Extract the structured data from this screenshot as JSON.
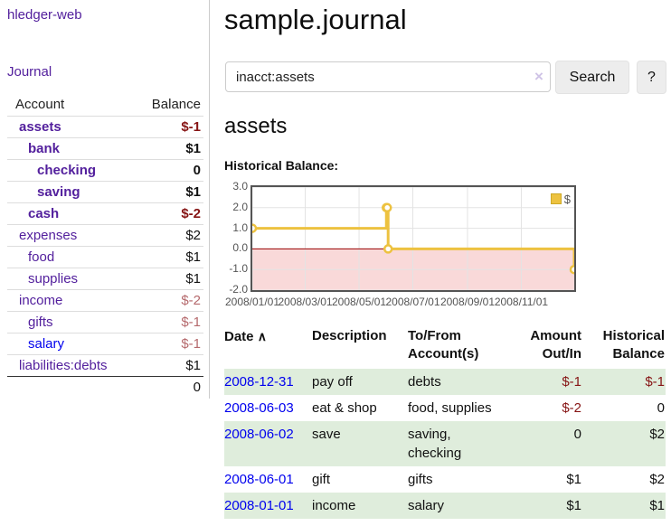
{
  "colors": {
    "link_purple": "#53209d",
    "link_blue": "#0000ee",
    "negative_strong": "#861414",
    "negative_soft": "#b5696c",
    "row_highlight_green": "#dfeddc",
    "chart_gold": "#EDC240"
  },
  "sidebar": {
    "brand": "hledger-web",
    "nav": {
      "journal": "Journal"
    },
    "table_headers": {
      "account": "Account",
      "balance": "Balance"
    },
    "accounts": [
      {
        "name": "assets",
        "balance": "$-1"
      },
      {
        "name": "bank",
        "balance": "$1"
      },
      {
        "name": "checking",
        "balance": "0"
      },
      {
        "name": "saving",
        "balance": "$1"
      },
      {
        "name": "cash",
        "balance": "$-2"
      },
      {
        "name": "expenses",
        "balance": "$2"
      },
      {
        "name": "food",
        "balance": "$1"
      },
      {
        "name": "supplies",
        "balance": "$1"
      },
      {
        "name": "income",
        "balance": "$-2"
      },
      {
        "name": "gifts",
        "balance": "$-1"
      },
      {
        "name": "salary",
        "balance": "$-1"
      },
      {
        "name": "liabilities:debts",
        "balance": "$1"
      }
    ],
    "total": "0"
  },
  "header": {
    "title": "sample.journal"
  },
  "search": {
    "value": "inacct:assets",
    "clear_icon": "×",
    "button_label": "Search",
    "help_label": "?"
  },
  "account_page": {
    "heading": "assets"
  },
  "chart_data": {
    "type": "line",
    "title": "Historical Balance:",
    "steps": true,
    "series": [
      {
        "name": "$",
        "color": "#EDC240",
        "points": [
          [
            "2008-01-01",
            1
          ],
          [
            "2008-06-01",
            2
          ],
          [
            "2008-06-02",
            2
          ],
          [
            "2008-06-03",
            0
          ],
          [
            "2008-12-31",
            -1
          ]
        ]
      }
    ],
    "x_ticks": [
      "2008/01/01",
      "2008/03/01",
      "2008/05/01",
      "2008/07/01",
      "2008/09/01",
      "2008/11/01"
    ],
    "y_ticks": [
      "3.0",
      "2.0",
      "1.0",
      "0.0",
      "-1.0",
      "-2.0"
    ],
    "xlim": [
      "2008-01-01",
      "2008-12-31"
    ],
    "ylim": [
      -2,
      3
    ],
    "grid": true,
    "legend": {
      "position": "ne",
      "label": "$"
    },
    "negative_region_color": "#f9d9d9",
    "zero_line_color": "#9d0000",
    "gridline_color": "#e3e3e3"
  },
  "register": {
    "headers": {
      "date": "Date",
      "sort_icon": "∧",
      "description": "Description",
      "tofrom": "To/From Account(s)",
      "amount": "Amount Out/In",
      "balance": "Historical Balance"
    },
    "rows": [
      {
        "date": "2008-12-31",
        "description": "pay off",
        "accounts": "debts",
        "amount": "$-1",
        "balance": "$-1"
      },
      {
        "date": "2008-06-03",
        "description": "eat & shop",
        "accounts": "food, supplies",
        "amount": "$-2",
        "balance": "0"
      },
      {
        "date": "2008-06-02",
        "description": "save",
        "accounts": "saving, checking",
        "amount": "0",
        "balance": "$2"
      },
      {
        "date": "2008-06-01",
        "description": "gift",
        "accounts": "gifts",
        "amount": "$1",
        "balance": "$2"
      },
      {
        "date": "2008-01-01",
        "description": "income",
        "accounts": "salary",
        "amount": "$1",
        "balance": "$1"
      }
    ]
  }
}
